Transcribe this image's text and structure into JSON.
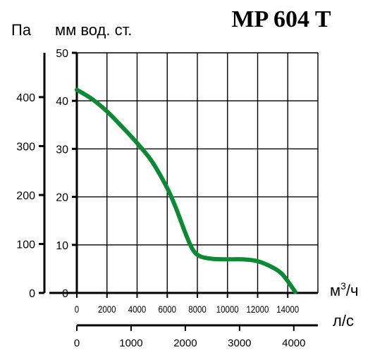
{
  "chart_data": {
    "type": "line",
    "title": "MP 604 T",
    "left_axis_pa": {
      "label": "Па",
      "ticks": [
        0,
        100,
        200,
        300,
        400
      ],
      "range": [
        0,
        490.5
      ]
    },
    "left_axis_mm": {
      "label": "мм  вод. ст.",
      "ticks": [
        0,
        10,
        20,
        30,
        40,
        50
      ],
      "range": [
        0,
        50
      ]
    },
    "bottom_axis_m3h": {
      "label": "м³/ч",
      "label_base": "м",
      "label_sup": "3",
      "label_tail": "/ч",
      "ticks": [
        0,
        2000,
        4000,
        6000,
        8000,
        10000,
        12000,
        14000
      ],
      "range": [
        0,
        16000
      ]
    },
    "bottom_axis_ls": {
      "label": "л/с",
      "ticks": [
        0,
        1000,
        2000,
        3000,
        4000
      ],
      "range": [
        0,
        4444.4
      ]
    },
    "grid": true,
    "colors": {
      "curve": "#0a8a32",
      "grid": "#000000"
    },
    "series": [
      {
        "x": [
          0,
          1000,
          2000,
          3000,
          4000,
          5000,
          6000,
          6600,
          7200,
          7700,
          8200,
          9000,
          10000,
          11000,
          12000,
          13000,
          13600,
          14100,
          14500
        ],
        "y": [
          42.3,
          40.4,
          37.8,
          34.6,
          31.2,
          27.3,
          21.8,
          17.5,
          12.5,
          9.0,
          7.6,
          7.1,
          7.0,
          7.0,
          6.6,
          5.3,
          4.0,
          2.0,
          0.2
        ]
      }
    ]
  }
}
